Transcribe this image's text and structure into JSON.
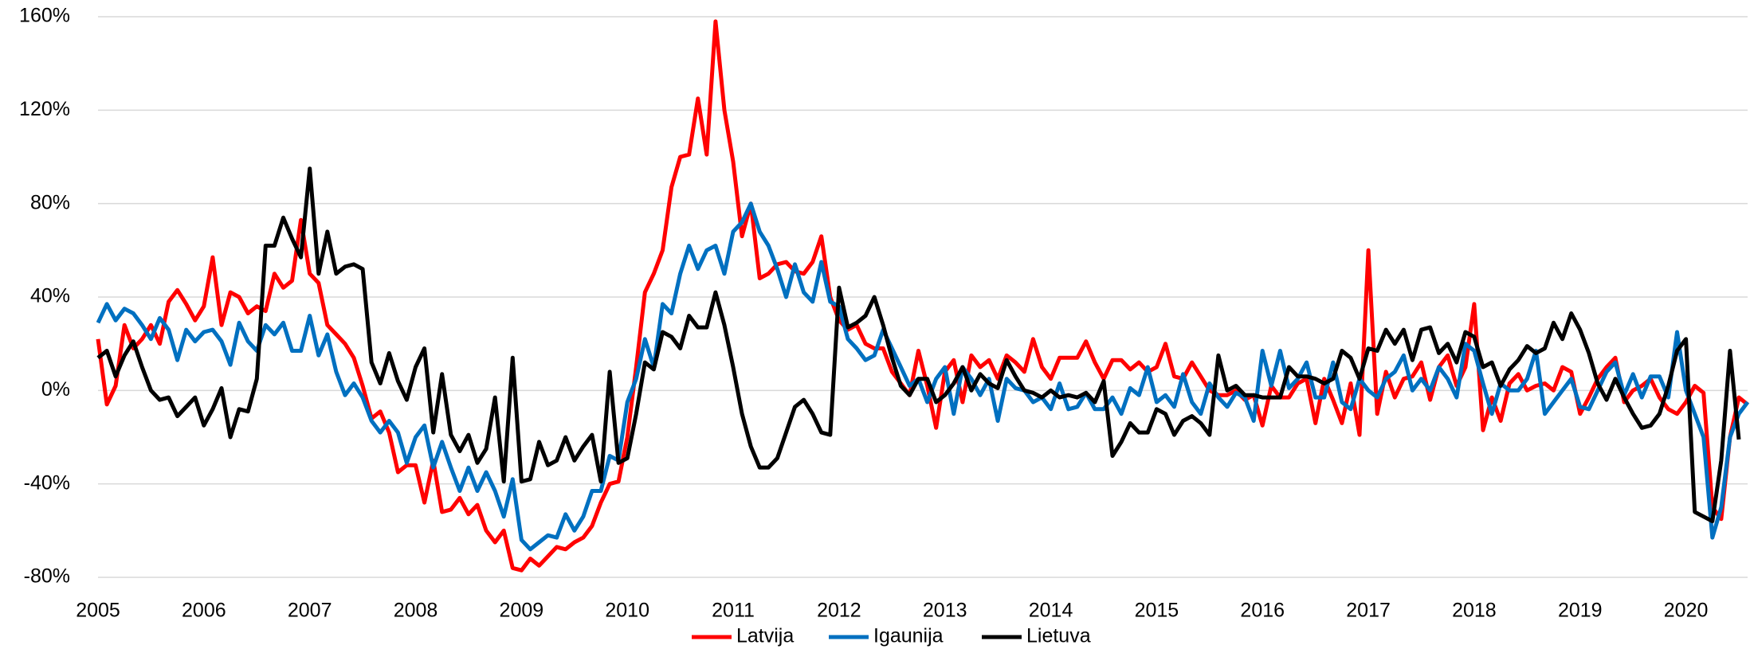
{
  "chart_data": {
    "type": "line",
    "categories": [
      "2005",
      null,
      null,
      null,
      null,
      null,
      null,
      null,
      null,
      null,
      null,
      null,
      "2006",
      null,
      null,
      null,
      null,
      null,
      null,
      null,
      null,
      null,
      null,
      null,
      "2007",
      null,
      null,
      null,
      null,
      null,
      null,
      null,
      null,
      null,
      null,
      null,
      "2008",
      null,
      null,
      null,
      null,
      null,
      null,
      null,
      null,
      null,
      null,
      null,
      "2009",
      null,
      null,
      null,
      null,
      null,
      null,
      null,
      null,
      null,
      null,
      null,
      "2010",
      null,
      null,
      null,
      null,
      null,
      null,
      null,
      null,
      null,
      null,
      null,
      "2011",
      null,
      null,
      null,
      null,
      null,
      null,
      null,
      null,
      null,
      null,
      null,
      "2012",
      null,
      null,
      null,
      null,
      null,
      null,
      null,
      null,
      null,
      null,
      null,
      "2013",
      null,
      null,
      null,
      null,
      null,
      null,
      null,
      null,
      null,
      null,
      null,
      "2014",
      null,
      null,
      null,
      null,
      null,
      null,
      null,
      null,
      null,
      null,
      null,
      "2015",
      null,
      null,
      null,
      null,
      null,
      null,
      null,
      null,
      null,
      null,
      null,
      "2016",
      null,
      null,
      null,
      null,
      null,
      null,
      null,
      null,
      null,
      null,
      null,
      "2017",
      null,
      null,
      null,
      null,
      null,
      null,
      null,
      null,
      null,
      null,
      null,
      "2018",
      null,
      null,
      null,
      null,
      null,
      null,
      null,
      null,
      null,
      null,
      null,
      "2019",
      null,
      null,
      null,
      null,
      null,
      null,
      null,
      null,
      null,
      null,
      null,
      "2020",
      null,
      null,
      null,
      null,
      null,
      null,
      null
    ],
    "series": [
      {
        "name": "Latvija",
        "color": "#ff0000",
        "values": [
          22,
          -6,
          2,
          28,
          18,
          22,
          28,
          20,
          38,
          43,
          37,
          30,
          36,
          57,
          28,
          42,
          40,
          33,
          36,
          34,
          50,
          44,
          47,
          73,
          50,
          46,
          28,
          24,
          20,
          14,
          2,
          -12,
          -9,
          -18,
          -35,
          -32,
          -32,
          -48,
          -30,
          -52,
          -51,
          -46,
          -53,
          -49,
          -60,
          -65,
          -60,
          -76,
          -77,
          -72,
          -75,
          -71,
          -67,
          -68,
          -65,
          -63,
          -58,
          -48,
          -40,
          -39,
          -20,
          10,
          42,
          50,
          60,
          87,
          100,
          101,
          125,
          101,
          158,
          120,
          98,
          66,
          80,
          48,
          50,
          54,
          55,
          51,
          50,
          55,
          66,
          40,
          30,
          26,
          28,
          20,
          18,
          18,
          8,
          3,
          -2,
          17,
          2,
          -16,
          8,
          13,
          -5,
          15,
          10,
          13,
          5,
          15,
          12,
          8,
          22,
          10,
          5,
          14,
          14,
          14,
          21,
          12,
          5,
          13,
          13,
          9,
          12,
          8,
          10,
          20,
          6,
          5,
          12,
          6,
          0,
          -2,
          -2,
          0,
          -4,
          -2,
          -15,
          2,
          -3,
          -3,
          3,
          5,
          -14,
          5,
          -4,
          -14,
          3,
          -19,
          60,
          -10,
          8,
          -3,
          5,
          6,
          12,
          -4,
          10,
          15,
          2,
          10,
          37,
          -17,
          -3,
          -13,
          3,
          7,
          0,
          2,
          3,
          0,
          10,
          8,
          -10,
          -3,
          5,
          10,
          14,
          -5,
          0,
          2,
          5,
          -3,
          -8,
          -10,
          -5,
          2,
          -1,
          -50,
          -55,
          -20,
          -3,
          -6
        ]
      },
      {
        "name": "Igaunija",
        "color": "#0070c0",
        "values": [
          29,
          37,
          30,
          35,
          33,
          28,
          22,
          31,
          26,
          13,
          26,
          21,
          25,
          26,
          21,
          11,
          29,
          21,
          17,
          28,
          24,
          29,
          17,
          17,
          32,
          15,
          24,
          8,
          -2,
          3,
          -3,
          -13,
          -18,
          -13,
          -18,
          -31,
          -20,
          -15,
          -33,
          -22,
          -33,
          -43,
          -33,
          -43,
          -35,
          -43,
          -54,
          -38,
          -64,
          -68,
          -65,
          -62,
          -63,
          -53,
          -60,
          -54,
          -43,
          -43,
          -28,
          -30,
          -5,
          5,
          22,
          10,
          37,
          33,
          50,
          62,
          52,
          60,
          62,
          50,
          68,
          72,
          80,
          68,
          62,
          52,
          40,
          54,
          42,
          38,
          55,
          38,
          36,
          22,
          18,
          13,
          15,
          26,
          18,
          10,
          2,
          5,
          -5,
          5,
          10,
          -10,
          10,
          5,
          -2,
          5,
          -13,
          5,
          1,
          0,
          -5,
          -3,
          -8,
          3,
          -8,
          -7,
          -1,
          -8,
          -8,
          -3,
          -10,
          1,
          -2,
          10,
          -5,
          -2,
          -7,
          7,
          -5,
          -10,
          3,
          -3,
          -7,
          -1,
          -3,
          -13,
          17,
          2,
          17,
          1,
          5,
          12,
          -3,
          -3,
          12,
          -5,
          -8,
          5,
          0,
          -3,
          5,
          8,
          15,
          0,
          5,
          0,
          10,
          5,
          -3,
          20,
          17,
          3,
          -10,
          3,
          0,
          0,
          5,
          17,
          -10,
          -5,
          0,
          5,
          -7,
          -8,
          0,
          8,
          12,
          -2,
          7,
          -3,
          6,
          6,
          -3,
          25,
          0,
          -10,
          -20,
          -63,
          -50,
          -20,
          -10,
          -5
        ]
      },
      {
        "name": "Lietuva",
        "color": "#000000",
        "values": [
          14,
          17,
          6,
          15,
          21,
          10,
          0,
          -4,
          -3,
          -11,
          -7,
          -3,
          -15,
          -8,
          1,
          -20,
          -8,
          -9,
          5,
          62,
          62,
          74,
          65,
          57,
          95,
          50,
          68,
          50,
          53,
          54,
          52,
          12,
          3,
          16,
          4,
          -4,
          10,
          18,
          -18,
          7,
          -19,
          -26,
          -19,
          -31,
          -25,
          -3,
          -39,
          14,
          -39,
          -38,
          -22,
          -32,
          -30,
          -20,
          -30,
          -24,
          -19,
          -39,
          8,
          -31,
          -29,
          -10,
          12,
          9,
          25,
          23,
          18,
          32,
          27,
          27,
          42,
          28,
          10,
          -10,
          -24,
          -33,
          -33,
          -29,
          -18,
          -7,
          -4,
          -10,
          -18,
          -19,
          44,
          27,
          29,
          32,
          40,
          28,
          14,
          2,
          -2,
          5,
          5,
          -5,
          -2,
          3,
          10,
          0,
          7,
          3,
          1,
          13,
          6,
          0,
          -1,
          -3,
          0,
          -3,
          -2,
          -3,
          -1,
          -5,
          4,
          -28,
          -22,
          -14,
          -18,
          -18,
          -8,
          -10,
          -19,
          -13,
          -11,
          -14,
          -19,
          15,
          0,
          2,
          -2,
          -2,
          -3,
          -3,
          -3,
          10,
          6,
          6,
          5,
          3,
          5,
          17,
          14,
          5,
          18,
          17,
          26,
          20,
          26,
          13,
          26,
          27,
          16,
          20,
          12,
          25,
          23,
          10,
          12,
          2,
          9,
          13,
          19,
          16,
          18,
          29,
          22,
          33,
          26,
          16,
          3,
          -4,
          5,
          -3,
          -10,
          -16,
          -15,
          -10,
          2,
          17,
          22,
          -52,
          -54,
          -56,
          -30,
          17,
          -21,
          null
        ]
      }
    ],
    "ylim": [
      -80,
      160
    ],
    "yticks": [
      {
        "value": -80,
        "label": "-80%"
      },
      {
        "value": -40,
        "label": "-40%"
      },
      {
        "value": 0,
        "label": "0%"
      },
      {
        "value": 40,
        "label": "40%"
      },
      {
        "value": 80,
        "label": "80%"
      },
      {
        "value": 120,
        "label": "120%"
      },
      {
        "value": 160,
        "label": "160%"
      }
    ],
    "grid": true,
    "legend": "bottom"
  }
}
